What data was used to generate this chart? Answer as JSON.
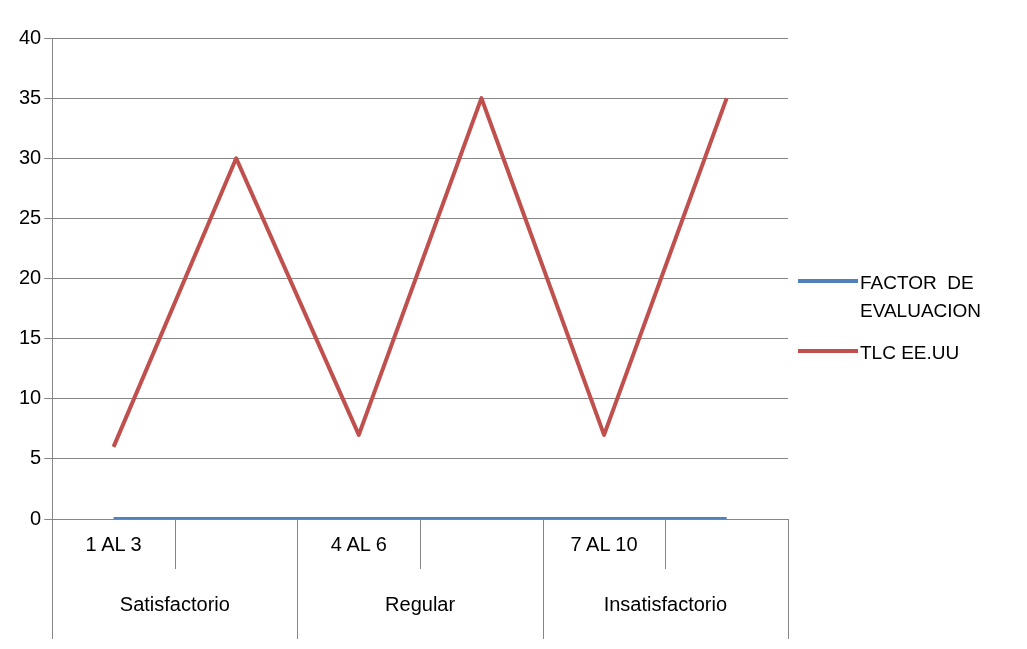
{
  "chart_data": {
    "type": "line",
    "categories": [
      "1 AL 3",
      null,
      "4 AL 6",
      null,
      "7 AL 10",
      null
    ],
    "annotations": [
      "Satisfactorio",
      "Regular",
      "Insatisfactorio"
    ],
    "series": [
      {
        "name": "FACTOR  DE EVALUACION",
        "color": "#4f81bd",
        "values": [
          0,
          0,
          0,
          0,
          0,
          0
        ]
      },
      {
        "name": "TLC EE.UU",
        "color": "#c0504d",
        "values": [
          6,
          30,
          7,
          35,
          7,
          35
        ]
      }
    ],
    "ylim": [
      0,
      40
    ],
    "yticks": [
      0,
      5,
      10,
      15,
      20,
      25,
      30,
      35,
      40
    ],
    "grid": "y",
    "legend": "right",
    "marker": "none"
  }
}
